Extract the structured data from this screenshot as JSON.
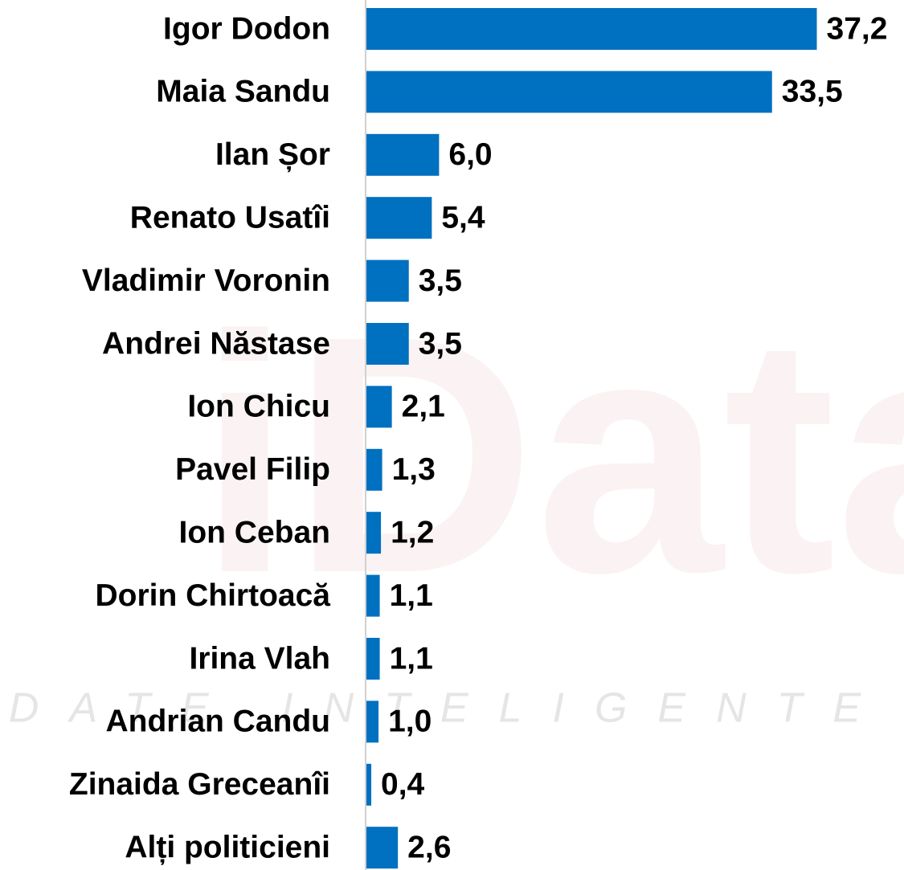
{
  "chart_data": {
    "type": "hbar",
    "watermark": "iData",
    "watermark_tagline": "DATE INTELIGENTE",
    "categories": [
      "Igor Dodon",
      "Maia Sandu",
      "Ilan Șor",
      "Renato Usatîi",
      "Vladimir Voronin",
      "Andrei Năstase",
      "Ion Chicu",
      "Pavel Filip",
      "Ion Ceban",
      "Dorin Chirtoacă",
      "Irina Vlah",
      "Andrian Candu",
      "Zinaida Greceanîi",
      "Alți politicieni"
    ],
    "values": [
      37.2,
      33.5,
      6.0,
      5.4,
      3.5,
      3.5,
      2.1,
      1.3,
      1.2,
      1.1,
      1.1,
      1.0,
      0.4,
      2.6
    ],
    "value_labels": [
      "37,2",
      "33,5",
      "6,0",
      "5,4",
      "3,5",
      "3,5",
      "2,1",
      "1,3",
      "1,2",
      "1,1",
      "1,1",
      "1,0",
      "0,4",
      "2,6"
    ],
    "color": "#0070c0",
    "xlim": [
      0,
      44.4
    ]
  }
}
